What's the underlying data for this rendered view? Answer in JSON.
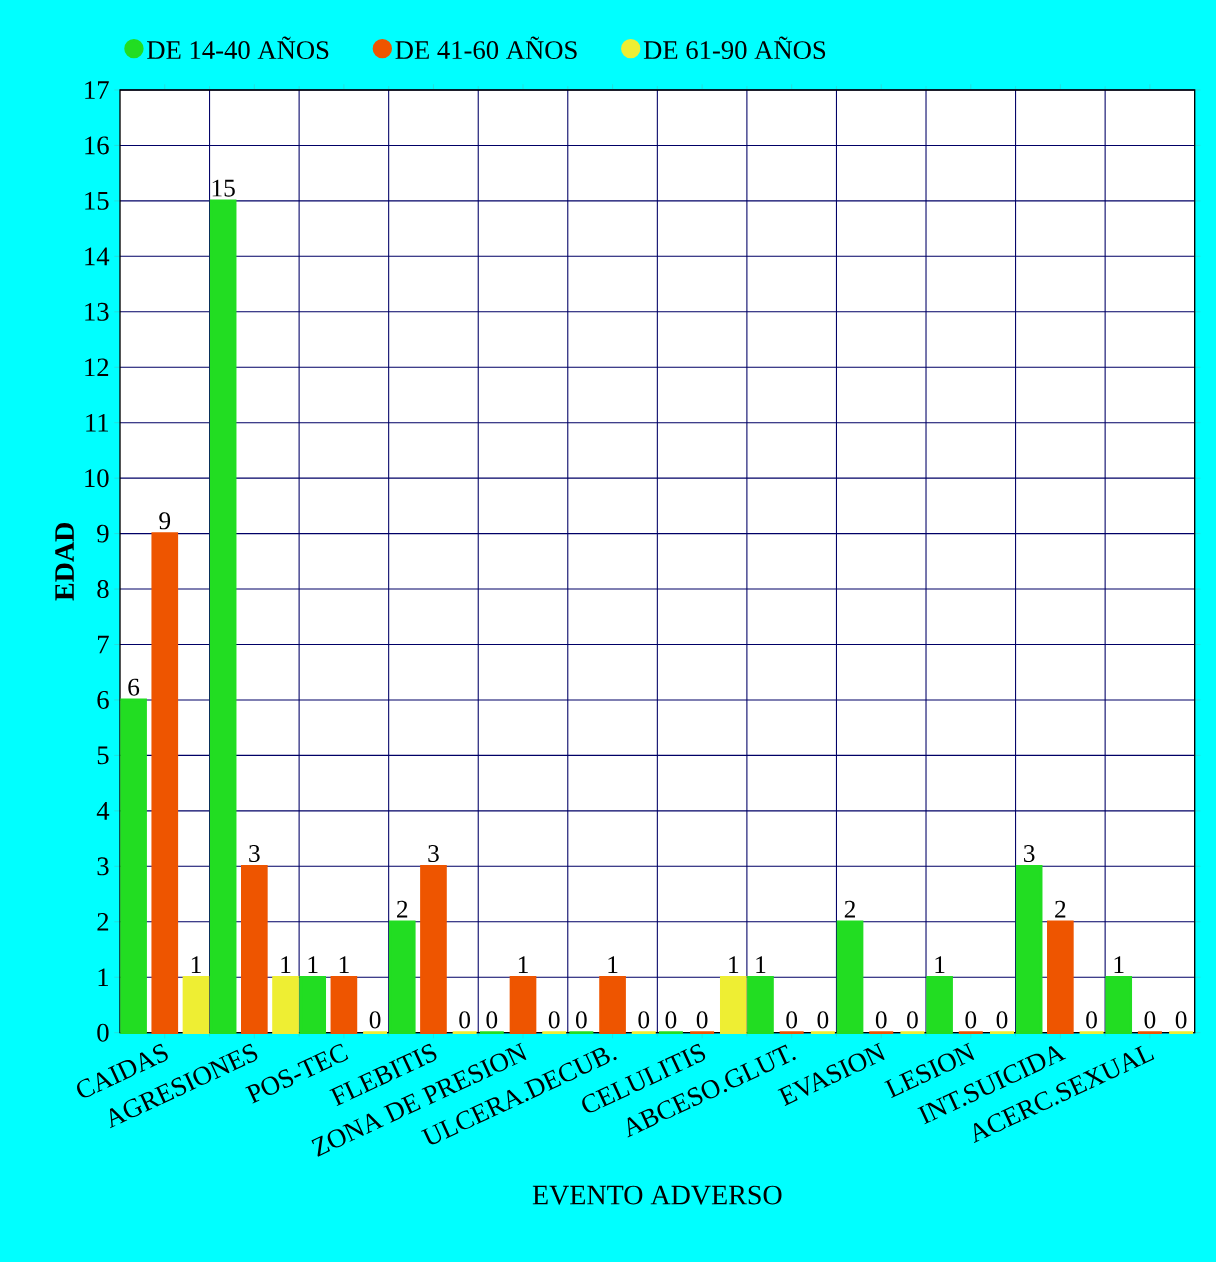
{
  "chart_data": {
    "type": "bar",
    "xlabel": "EVENTO ADVERSO",
    "ylabel": "EDAD",
    "categories": [
      "CAIDAS",
      "AGRESIONES",
      "POS-TEC",
      "FLEBITIS",
      "ZONA DE PRESION",
      "ULCERA.DECUB.",
      "CELULITIS",
      "ABCESO.GLUT.",
      "EVASION",
      "LESION",
      "INT.SUICIDA",
      "ACERC.SEXUAL"
    ],
    "series": [
      {
        "name": "DE 14-40 AÑOS",
        "color": "#22dd22",
        "values": [
          6,
          15,
          1,
          2,
          0,
          0,
          0,
          1,
          2,
          1,
          3,
          1
        ]
      },
      {
        "name": "DE 41-60 AÑOS",
        "color": "#ee5500",
        "values": [
          9,
          3,
          1,
          3,
          1,
          1,
          0,
          0,
          0,
          0,
          2,
          0
        ]
      },
      {
        "name": "DE 61-90 AÑOS",
        "color": "#eeee33",
        "values": [
          1,
          1,
          0,
          0,
          0,
          0,
          1,
          0,
          0,
          0,
          0,
          0
        ]
      }
    ],
    "ylim": [
      0,
      17
    ],
    "yticks": [
      0,
      1,
      2,
      3,
      4,
      5,
      6,
      7,
      8,
      9,
      10,
      11,
      12,
      13,
      14,
      15,
      16,
      17
    ],
    "grid": true,
    "legend": "top",
    "data_labels": true
  }
}
